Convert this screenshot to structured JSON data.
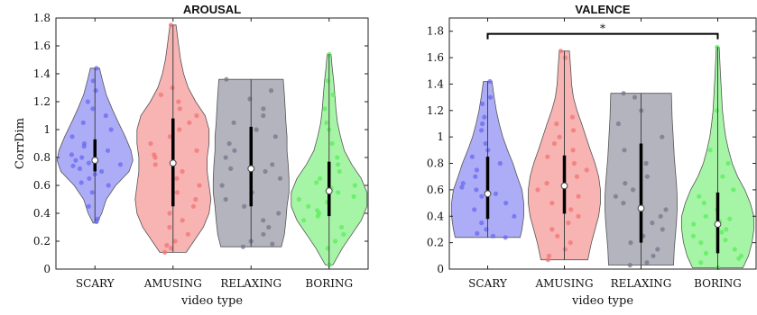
{
  "chart_data": [
    {
      "type": "violin",
      "title": "AROUSAL",
      "xlabel": "video type",
      "ylabel": "CorrDim",
      "ylim": [
        0,
        1.8
      ],
      "yticks": [
        0,
        0.2,
        0.4,
        0.6,
        0.8,
        1,
        1.2,
        1.4,
        1.6,
        1.8
      ],
      "ytick_labels": [
        "0",
        "0.2",
        "0.4",
        "0.6",
        "0.8",
        "1",
        "1.2",
        "1.4",
        "1.6",
        "1.8"
      ],
      "categories": [
        "SCARY",
        "AMUSING",
        "RELAXING",
        "BORING"
      ],
      "colors": [
        "#6a6af0",
        "#f27474",
        "#76768a",
        "#5cec5c"
      ],
      "groups": [
        {
          "name": "SCARY",
          "median": 0.78,
          "q1": 0.7,
          "q3": 0.93,
          "whisker_low": 0.34,
          "whisker_high": 1.44,
          "shape": [
            [
              0.33,
              0.05
            ],
            [
              0.4,
              0.18
            ],
            [
              0.5,
              0.3
            ],
            [
              0.6,
              0.55
            ],
            [
              0.7,
              0.9
            ],
            [
              0.78,
              1.0
            ],
            [
              0.85,
              0.95
            ],
            [
              0.95,
              0.8
            ],
            [
              1.05,
              0.62
            ],
            [
              1.15,
              0.45
            ],
            [
              1.25,
              0.3
            ],
            [
              1.35,
              0.2
            ],
            [
              1.44,
              0.12
            ]
          ],
          "points": [
            0.34,
            0.36,
            0.45,
            0.55,
            0.6,
            0.62,
            0.65,
            0.68,
            0.7,
            0.72,
            0.74,
            0.75,
            0.76,
            0.78,
            0.79,
            0.8,
            0.82,
            0.85,
            0.88,
            0.9,
            0.95,
            1.0,
            1.05,
            1.1,
            1.15,
            1.2,
            1.28,
            1.35,
            1.44
          ]
        },
        {
          "name": "AMUSING",
          "median": 0.76,
          "q1": 0.45,
          "q3": 1.08,
          "whisker_low": 0.12,
          "whisker_high": 1.75,
          "shape": [
            [
              0.12,
              0.35
            ],
            [
              0.2,
              0.55
            ],
            [
              0.3,
              0.8
            ],
            [
              0.4,
              0.95
            ],
            [
              0.5,
              1.0
            ],
            [
              0.6,
              0.95
            ],
            [
              0.7,
              0.9
            ],
            [
              0.8,
              0.9
            ],
            [
              0.9,
              0.95
            ],
            [
              1.0,
              0.95
            ],
            [
              1.1,
              0.85
            ],
            [
              1.2,
              0.6
            ],
            [
              1.3,
              0.4
            ],
            [
              1.4,
              0.28
            ],
            [
              1.5,
              0.2
            ],
            [
              1.6,
              0.15
            ],
            [
              1.75,
              0.08
            ]
          ],
          "points": [
            0.12,
            0.15,
            0.17,
            0.2,
            0.25,
            0.3,
            0.35,
            0.4,
            0.45,
            0.5,
            0.55,
            0.6,
            0.65,
            0.7,
            0.75,
            0.8,
            0.82,
            0.85,
            0.9,
            0.95,
            1.0,
            1.05,
            1.1,
            1.15,
            1.2,
            1.25,
            1.3,
            1.75
          ]
        },
        {
          "name": "RELAXING",
          "median": 0.72,
          "q1": 0.45,
          "q3": 1.02,
          "whisker_low": 0.16,
          "whisker_high": 1.36,
          "shape": [
            [
              0.16,
              0.8
            ],
            [
              0.25,
              0.88
            ],
            [
              0.35,
              0.92
            ],
            [
              0.45,
              0.95
            ],
            [
              0.55,
              1.0
            ],
            [
              0.65,
              1.0
            ],
            [
              0.75,
              0.98
            ],
            [
              0.85,
              0.95
            ],
            [
              0.95,
              0.95
            ],
            [
              1.05,
              0.92
            ],
            [
              1.15,
              0.9
            ],
            [
              1.25,
              0.88
            ],
            [
              1.36,
              0.85
            ]
          ],
          "points": [
            0.16,
            0.18,
            0.2,
            0.25,
            0.3,
            0.35,
            0.4,
            0.45,
            0.5,
            0.55,
            0.6,
            0.65,
            0.7,
            0.72,
            0.75,
            0.8,
            0.85,
            0.9,
            0.95,
            1.0,
            1.05,
            1.1,
            1.15,
            1.22,
            1.28,
            1.36
          ]
        },
        {
          "name": "BORING",
          "median": 0.56,
          "q1": 0.38,
          "q3": 0.77,
          "whisker_low": 0.03,
          "whisker_high": 1.54,
          "shape": [
            [
              0.03,
              0.1
            ],
            [
              0.15,
              0.35
            ],
            [
              0.25,
              0.6
            ],
            [
              0.35,
              0.85
            ],
            [
              0.45,
              1.0
            ],
            [
              0.55,
              1.0
            ],
            [
              0.65,
              0.85
            ],
            [
              0.75,
              0.6
            ],
            [
              0.85,
              0.4
            ],
            [
              0.95,
              0.3
            ],
            [
              1.05,
              0.22
            ],
            [
              1.15,
              0.18
            ],
            [
              1.25,
              0.15
            ],
            [
              1.35,
              0.12
            ],
            [
              1.45,
              0.08
            ],
            [
              1.54,
              0.05
            ]
          ],
          "points": [
            0.03,
            0.15,
            0.2,
            0.25,
            0.3,
            0.35,
            0.38,
            0.4,
            0.42,
            0.45,
            0.48,
            0.5,
            0.52,
            0.55,
            0.58,
            0.6,
            0.62,
            0.65,
            0.7,
            0.75,
            0.8,
            0.9,
            1.0,
            1.05,
            1.15,
            1.25,
            1.35,
            1.54
          ]
        }
      ]
    },
    {
      "type": "violin",
      "title": "VALENCE",
      "xlabel": "video type",
      "ylabel": "",
      "ylim": [
        0,
        1.9
      ],
      "yticks": [
        0,
        0.2,
        0.4,
        0.6,
        0.8,
        1,
        1.2,
        1.4,
        1.6,
        1.8
      ],
      "ytick_labels": [
        "0",
        "0.2",
        "0.4",
        "0.6",
        "0.8",
        "1",
        "1.2",
        "1.4",
        "1.6",
        "1.8"
      ],
      "categories": [
        "SCARY",
        "AMUSING",
        "RELAXING",
        "BORING"
      ],
      "colors": [
        "#6a6af0",
        "#f27474",
        "#76768a",
        "#5cec5c"
      ],
      "significance": {
        "from": "SCARY",
        "to": "BORING",
        "y": 1.78,
        "label": "*"
      },
      "groups": [
        {
          "name": "SCARY",
          "median": 0.57,
          "q1": 0.38,
          "q3": 0.85,
          "whisker_low": 0.24,
          "whisker_high": 1.42,
          "shape": [
            [
              0.24,
              0.9
            ],
            [
              0.3,
              0.95
            ],
            [
              0.4,
              1.0
            ],
            [
              0.5,
              1.0
            ],
            [
              0.6,
              0.95
            ],
            [
              0.7,
              0.82
            ],
            [
              0.8,
              0.7
            ],
            [
              0.9,
              0.55
            ],
            [
              1.0,
              0.42
            ],
            [
              1.1,
              0.32
            ],
            [
              1.2,
              0.24
            ],
            [
              1.3,
              0.18
            ],
            [
              1.42,
              0.12
            ]
          ],
          "points": [
            0.24,
            0.25,
            0.27,
            0.3,
            0.35,
            0.4,
            0.45,
            0.5,
            0.55,
            0.57,
            0.6,
            0.62,
            0.65,
            0.7,
            0.75,
            0.8,
            0.85,
            0.9,
            0.95,
            1.05,
            1.1,
            1.15,
            1.25,
            1.3,
            1.42
          ]
        },
        {
          "name": "AMUSING",
          "median": 0.63,
          "q1": 0.42,
          "q3": 0.86,
          "whisker_low": 0.07,
          "whisker_high": 1.65,
          "shape": [
            [
              0.07,
              0.65
            ],
            [
              0.2,
              0.75
            ],
            [
              0.3,
              0.85
            ],
            [
              0.4,
              0.95
            ],
            [
              0.5,
              1.0
            ],
            [
              0.6,
              1.0
            ],
            [
              0.7,
              0.95
            ],
            [
              0.8,
              0.85
            ],
            [
              0.9,
              0.72
            ],
            [
              1.0,
              0.6
            ],
            [
              1.1,
              0.48
            ],
            [
              1.2,
              0.35
            ],
            [
              1.3,
              0.25
            ],
            [
              1.4,
              0.2
            ],
            [
              1.5,
              0.18
            ],
            [
              1.65,
              0.14
            ]
          ],
          "points": [
            0.07,
            0.1,
            0.15,
            0.2,
            0.25,
            0.3,
            0.35,
            0.4,
            0.45,
            0.5,
            0.55,
            0.6,
            0.65,
            0.7,
            0.75,
            0.8,
            0.85,
            0.9,
            0.95,
            1.0,
            1.05,
            1.1,
            1.15,
            1.6,
            1.65
          ]
        },
        {
          "name": "RELAXING",
          "median": 0.46,
          "q1": 0.2,
          "q3": 0.95,
          "whisker_low": 0.03,
          "whisker_high": 1.33,
          "shape": [
            [
              0.03,
              0.9
            ],
            [
              0.15,
              0.92
            ],
            [
              0.25,
              0.95
            ],
            [
              0.35,
              0.98
            ],
            [
              0.45,
              1.0
            ],
            [
              0.55,
              1.0
            ],
            [
              0.65,
              0.98
            ],
            [
              0.75,
              0.95
            ],
            [
              0.85,
              0.92
            ],
            [
              0.95,
              0.9
            ],
            [
              1.05,
              0.88
            ],
            [
              1.15,
              0.86
            ],
            [
              1.25,
              0.85
            ],
            [
              1.33,
              0.84
            ]
          ],
          "points": [
            0.03,
            0.05,
            0.1,
            0.15,
            0.2,
            0.25,
            0.3,
            0.35,
            0.4,
            0.45,
            0.5,
            0.55,
            0.6,
            0.65,
            0.7,
            0.8,
            0.9,
            1.0,
            1.1,
            1.2,
            1.3,
            1.33
          ]
        },
        {
          "name": "BORING",
          "median": 0.34,
          "q1": 0.12,
          "q3": 0.58,
          "whisker_low": 0.01,
          "whisker_high": 1.68,
          "shape": [
            [
              0.01,
              0.7
            ],
            [
              0.1,
              0.85
            ],
            [
              0.2,
              0.95
            ],
            [
              0.3,
              1.0
            ],
            [
              0.4,
              1.0
            ],
            [
              0.5,
              0.9
            ],
            [
              0.6,
              0.75
            ],
            [
              0.7,
              0.55
            ],
            [
              0.8,
              0.4
            ],
            [
              0.9,
              0.3
            ],
            [
              1.0,
              0.22
            ],
            [
              1.1,
              0.17
            ],
            [
              1.2,
              0.13
            ],
            [
              1.35,
              0.1
            ],
            [
              1.5,
              0.07
            ],
            [
              1.68,
              0.04
            ]
          ],
          "points": [
            0.01,
            0.05,
            0.08,
            0.1,
            0.12,
            0.15,
            0.2,
            0.22,
            0.25,
            0.28,
            0.3,
            0.34,
            0.36,
            0.38,
            0.4,
            0.45,
            0.5,
            0.55,
            0.6,
            0.7,
            0.8,
            0.9,
            1.2,
            1.68
          ]
        }
      ]
    }
  ]
}
